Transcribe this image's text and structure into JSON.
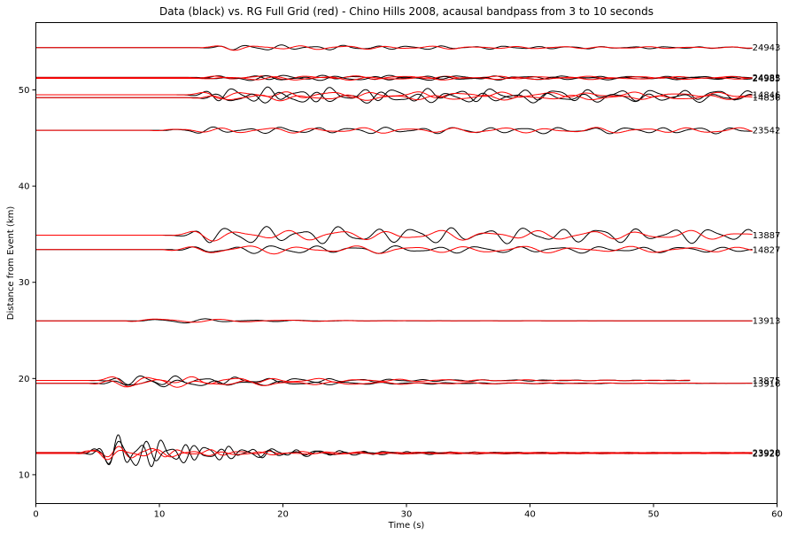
{
  "chart_data": {
    "type": "line",
    "title": "Data (black) vs. RG Full Grid (red) - Chino Hills 2008, acausal bandpass from 3 to 10 seconds",
    "xlabel": "Time (s)",
    "ylabel": "Distance from Event (km)",
    "xlim": [
      0,
      60
    ],
    "ylim": [
      7,
      57
    ],
    "xticks": [
      "0",
      "10",
      "20",
      "30",
      "40",
      "50",
      "60"
    ],
    "yticks": [
      "10",
      "20",
      "30",
      "40",
      "50"
    ],
    "grid": false,
    "colors": {
      "data": "#000000",
      "model": "#ff0000"
    },
    "stations": [
      {
        "label": "24943",
        "distance": 54.4,
        "onset": 13,
        "amp_data": 0.35,
        "amp_model": 0.3,
        "period": 2.6,
        "decay": 0.03,
        "end": 58
      },
      {
        "label": "24983",
        "distance": 51.3,
        "onset": 13,
        "amp_data": 0.3,
        "amp_model": 0.25,
        "period": 2.8,
        "decay": 0.02,
        "end": 58
      },
      {
        "label": "24985",
        "distance": 51.2,
        "onset": 14,
        "amp_data": 0.3,
        "amp_model": 0.25,
        "period": 2.9,
        "decay": 0.02,
        "end": 58
      },
      {
        "label": "14846",
        "distance": 49.5,
        "onset": 12,
        "amp_data": 0.9,
        "amp_model": 0.4,
        "period": 2.6,
        "decay": 0.01,
        "end": 58
      },
      {
        "label": "14836",
        "distance": 49.2,
        "onset": 13,
        "amp_data": 0.7,
        "amp_model": 0.35,
        "period": 2.7,
        "decay": 0.01,
        "end": 58
      },
      {
        "label": "23542",
        "distance": 45.8,
        "onset": 10,
        "amp_data": 0.35,
        "amp_model": 0.3,
        "period": 2.8,
        "decay": 0.0,
        "end": 58
      },
      {
        "label": "13887",
        "distance": 34.9,
        "onset": 11,
        "amp_data": 1.0,
        "amp_model": 0.6,
        "period": 3.0,
        "decay": 0.005,
        "end": 58
      },
      {
        "label": "14827",
        "distance": 33.4,
        "onset": 11,
        "amp_data": 0.5,
        "amp_model": 0.5,
        "period": 3.3,
        "decay": 0.01,
        "end": 58
      },
      {
        "label": "13913",
        "distance": 26.0,
        "onset": 8,
        "amp_data": 0.5,
        "amp_model": 0.6,
        "period": 3.8,
        "decay": 0.15,
        "end": 58
      },
      {
        "label": "13875",
        "distance": 19.8,
        "onset": 5,
        "amp_data": 0.8,
        "amp_model": 0.8,
        "period": 2.5,
        "decay": 0.07,
        "end": 53
      },
      {
        "label": "13916",
        "distance": 19.5,
        "onset": 5,
        "amp_data": 0.6,
        "amp_model": 0.7,
        "period": 2.7,
        "decay": 0.07,
        "end": 58
      },
      {
        "label": "23928",
        "distance": 12.3,
        "onset": 4,
        "amp_data": 3.0,
        "amp_model": 1.2,
        "period": 1.8,
        "decay": 0.12,
        "end": 58
      },
      {
        "label": "23920",
        "distance": 12.2,
        "onset": 4,
        "amp_data": 2.6,
        "amp_model": 1.0,
        "period": 2.0,
        "decay": 0.12,
        "end": 58
      }
    ]
  }
}
